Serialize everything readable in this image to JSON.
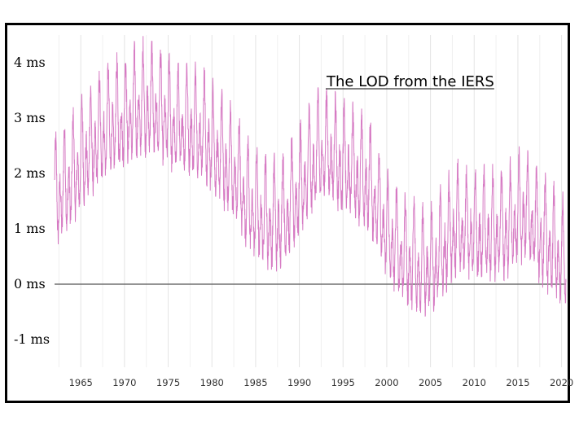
{
  "chart_data": {
    "type": "line",
    "title": "The LOD from the IERS",
    "xlabel": "",
    "ylabel": "",
    "xlim": [
      1962,
      2020.5
    ],
    "ylim": [
      -1.5,
      4.5
    ],
    "y_ticks": [
      4,
      3,
      2,
      1,
      0,
      -1
    ],
    "y_tick_labels": [
      "4 ms",
      "3 ms",
      "2 ms",
      "1 ms",
      "0 ms",
      "-1 ms"
    ],
    "x_ticks": [
      1965,
      1970,
      1975,
      1980,
      1985,
      1990,
      1995,
      2000,
      2005,
      2010,
      2015,
      2020
    ],
    "x_tick_labels": [
      "1965",
      "1970",
      "1975",
      "1980",
      "1985",
      "1990",
      "1995",
      "2000",
      "2005",
      "2010",
      "2015",
      "2020"
    ],
    "grid": "vertical",
    "legend": "none",
    "line_color": "#d67ac3",
    "zero_line_color": "#555555",
    "series": [
      {
        "x": [
          1962,
          1963,
          1964,
          1965,
          1966,
          1967,
          1968,
          1969,
          1970,
          1971,
          1972,
          1973,
          1974,
          1975,
          1976,
          1977,
          1978,
          1979,
          1980,
          1981,
          1982,
          1983,
          1984,
          1985,
          1986,
          1987,
          1988,
          1989,
          1990,
          1991,
          1992,
          1993,
          1994,
          1995,
          1996,
          1997,
          1998,
          1999,
          2000,
          2001,
          2002,
          2003,
          2004,
          2005,
          2006,
          2007,
          2008,
          2009,
          2010,
          2011,
          2012,
          2013,
          2014,
          2015,
          2016,
          2017,
          2018,
          2019,
          2020
        ],
        "y": [
          1.5,
          1.7,
          1.9,
          2.2,
          2.4,
          2.6,
          2.8,
          2.9,
          3.0,
          3.1,
          3.2,
          3.2,
          3.1,
          3.0,
          2.8,
          2.9,
          2.8,
          2.7,
          2.5,
          2.3,
          2.1,
          1.9,
          1.5,
          1.3,
          1.2,
          1.1,
          1.2,
          1.4,
          1.7,
          2.0,
          2.3,
          2.4,
          2.3,
          2.1,
          2.1,
          1.9,
          1.8,
          1.4,
          0.9,
          0.7,
          0.5,
          0.4,
          0.3,
          0.3,
          0.5,
          0.8,
          1.0,
          1.0,
          0.9,
          0.9,
          0.9,
          0.9,
          1.0,
          1.2,
          1.3,
          1.0,
          0.8,
          0.6,
          0.4
        ],
        "seasonal_amplitude_ms": 0.85
      }
    ]
  }
}
